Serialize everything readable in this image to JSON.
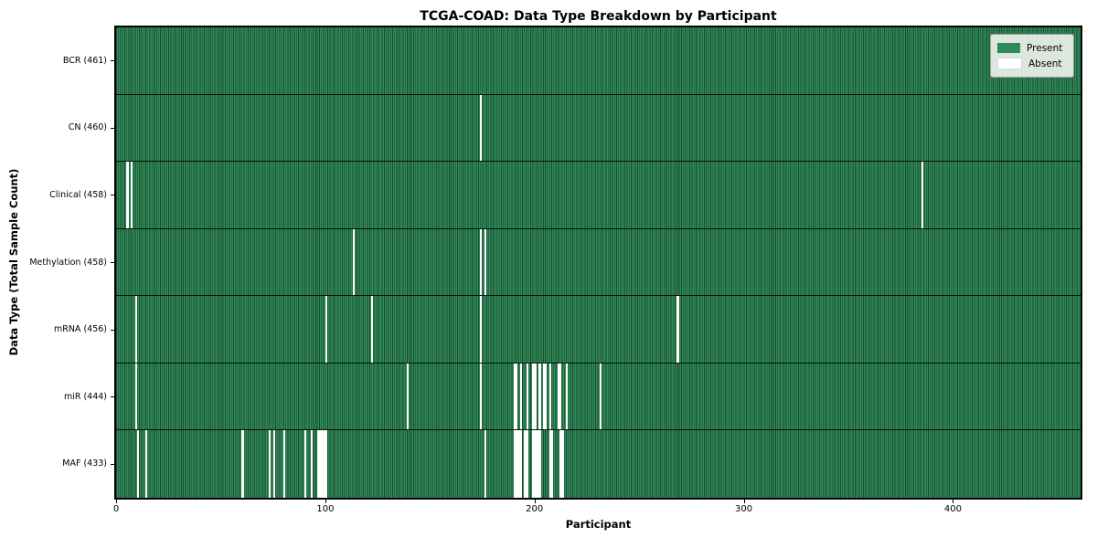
{
  "chart_data": {
    "type": "heatmap",
    "title": "TCGA-COAD: Data Type Breakdown by Participant",
    "xlabel": "Participant",
    "ylabel": "Data Type (Total Sample Count)",
    "x_ticks": [
      0,
      100,
      200,
      300,
      400
    ],
    "x_range": [
      0,
      461
    ],
    "n_participants": 461,
    "grid": false,
    "legend_position": "upper right",
    "colors": {
      "present": "#2e8b57",
      "absent": "#ffffff",
      "cell_edge": "#1c4a31",
      "frame": "#000000"
    },
    "legend": [
      {
        "label": "Present",
        "color": "#2e8b57"
      },
      {
        "label": "Absent",
        "color": "#ffffff"
      }
    ],
    "rows": [
      {
        "label": "BCR (461)",
        "data_type": "BCR",
        "present_count": 461,
        "absent_indices": []
      },
      {
        "label": "CN (460)",
        "data_type": "CN",
        "present_count": 460,
        "absent_indices": [
          174
        ]
      },
      {
        "label": "Clinical (458)",
        "data_type": "Clinical",
        "present_count": 458,
        "absent_indices": [
          5,
          7,
          385
        ]
      },
      {
        "label": "Methylation (458)",
        "data_type": "Methylation",
        "present_count": 458,
        "absent_indices": [
          113,
          174,
          176
        ]
      },
      {
        "label": "mRNA (456)",
        "data_type": "mRNA",
        "present_count": 456,
        "absent_indices": [
          9,
          100,
          122,
          174,
          268
        ]
      },
      {
        "label": "miR (444)",
        "data_type": "miR",
        "present_count": 444,
        "absent_indices": [
          9,
          139,
          174,
          190,
          191,
          193,
          196,
          199,
          200,
          202,
          204,
          205,
          207,
          211,
          212,
          215,
          231
        ]
      },
      {
        "label": "MAF (433)",
        "data_type": "MAF",
        "present_count": 433,
        "absent_indices": [
          10,
          14,
          60,
          73,
          75,
          80,
          90,
          93,
          96,
          97,
          98,
          99,
          100,
          176,
          190,
          191,
          192,
          193,
          195,
          196,
          199,
          200,
          201,
          202,
          207,
          208,
          212,
          213
        ]
      }
    ]
  }
}
